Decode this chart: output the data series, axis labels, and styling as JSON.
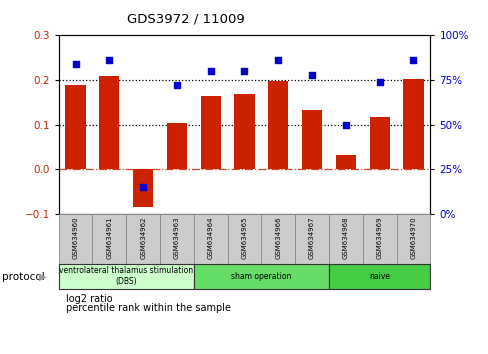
{
  "title": "GDS3972 / 11009",
  "samples": [
    "GSM634960",
    "GSM634961",
    "GSM634962",
    "GSM634963",
    "GSM634964",
    "GSM634965",
    "GSM634966",
    "GSM634967",
    "GSM634968",
    "GSM634969",
    "GSM634970"
  ],
  "log2_ratio": [
    0.19,
    0.21,
    -0.085,
    0.105,
    0.165,
    0.168,
    0.198,
    0.132,
    0.033,
    0.118,
    0.202
  ],
  "percentile_rank": [
    84,
    86,
    15,
    72,
    80,
    80,
    86,
    78,
    50,
    74,
    86
  ],
  "bar_color": "#cc2200",
  "dot_color": "#0000cc",
  "ylim_left": [
    -0.1,
    0.3
  ],
  "ylim_right": [
    0,
    100
  ],
  "yticks_left": [
    -0.1,
    0.0,
    0.1,
    0.2,
    0.3
  ],
  "yticks_right": [
    0,
    25,
    50,
    75,
    100
  ],
  "groups": [
    {
      "label": "ventrolateral thalamus stimulation\n(DBS)",
      "start": 0,
      "end": 4,
      "color": "#ccffcc"
    },
    {
      "label": "sham operation",
      "start": 4,
      "end": 8,
      "color": "#66dd66"
    },
    {
      "label": "naive",
      "start": 8,
      "end": 11,
      "color": "#44cc44"
    }
  ],
  "protocol_label": "protocol",
  "legend_bar_label": "log2 ratio",
  "legend_dot_label": "percentile rank within the sample",
  "dotted_lines": [
    0.1,
    0.2
  ],
  "bg_color": "#ffffff"
}
